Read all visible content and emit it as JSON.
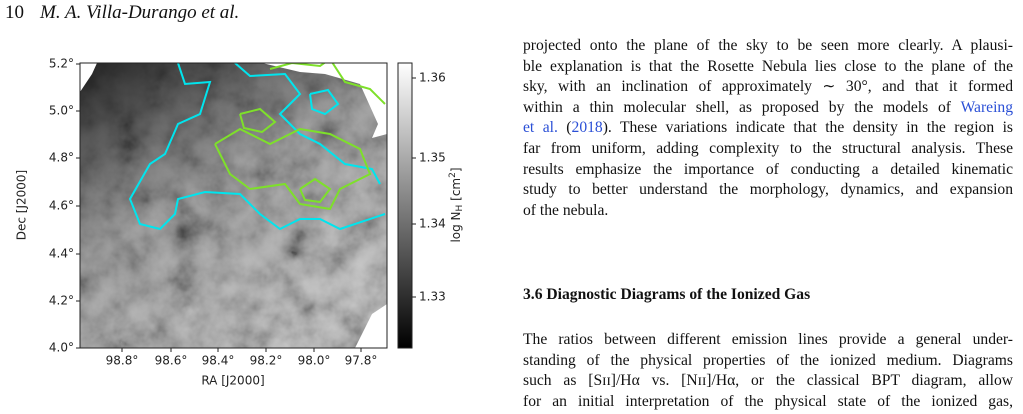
{
  "header": {
    "page_number": "10",
    "authors": "M. A. Villa-Durango et al."
  },
  "figure": {
    "y_tick_labels": [
      "5.2°",
      "5.0°",
      "4.8°",
      "4.6°",
      "4.4°",
      "4.2°",
      "4.0°"
    ],
    "x_tick_labels": [
      "98.8°",
      "98.6°",
      "98.4°",
      "98.2°",
      "98.0°",
      "97.8°"
    ],
    "colorbar_tick_labels": [
      "1.36",
      "1.35",
      "1.34",
      "1.33"
    ],
    "x_label": "RA [J2000]",
    "y_label": "Dec [J2000]",
    "colorbar_label": {
      "main": "log N",
      "subscript": "H",
      "unit_start": " [cm",
      "superscript": "2",
      "unit_end": "]"
    }
  },
  "body": {
    "paragraph_1": [
      "projected onto the plane of the sky to be seen more clearly. A plausi-",
      "ble explanation is that the Rosette Nebula lies close to the plane of the",
      "sky, with an inclination of approximately ∼ 30°, and that it formed",
      "within a thin molecular shell, as proposed by the models of ",
      "). These variations indicate that the density in the region is",
      "far from uniform, adding complexity to the structural analysis. These",
      "results emphasize the importance of conducting a detailed kinematic",
      "study to better understand the morphology, dynamics, and expansion",
      "of the nebula."
    ],
    "citation": {
      "author_start": "Wareing",
      "author_end": "et al.",
      "year": "2018"
    },
    "section_heading": "3.6  Diagnostic Diagrams of the Ionized Gas",
    "paragraph_2": [
      "The ratios between different emission lines provide a general under-",
      "standing of the physical properties of the ionized medium. Diagrams",
      "such as [Sɪɪ]/Hα vs. [Nɪɪ]/Hα, or the classical BPT diagram, allow",
      "for an initial interpretation of the physical state of the ionized gas,"
    ]
  }
}
